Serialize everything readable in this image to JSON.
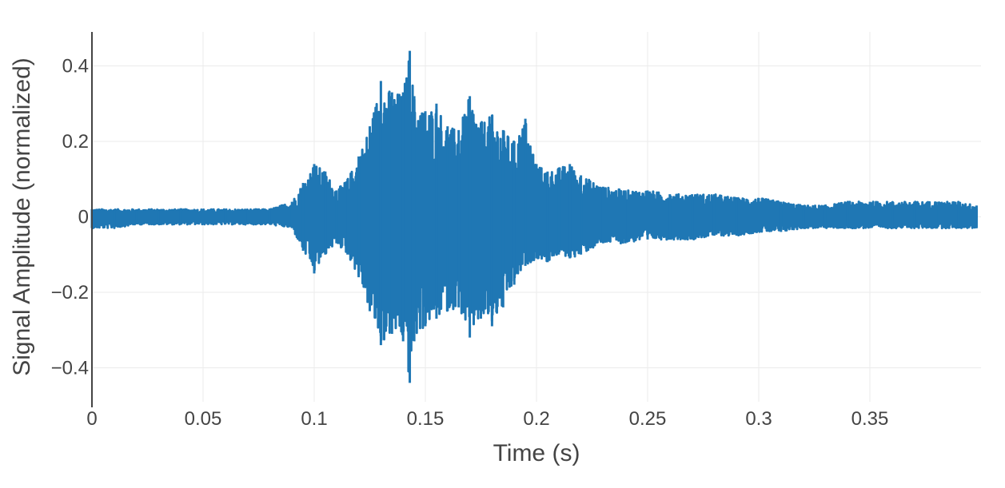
{
  "chart_data": {
    "type": "line",
    "title": "",
    "xlabel": "Time (s)",
    "ylabel": "Signal Amplitude (normalized)",
    "xlim": [
      0,
      0.4
    ],
    "ylim": [
      -0.49,
      0.49
    ],
    "x_ticks": [
      {
        "value": 0,
        "label": "0"
      },
      {
        "value": 0.05,
        "label": "0.05"
      },
      {
        "value": 0.1,
        "label": "0.1"
      },
      {
        "value": 0.15,
        "label": "0.15"
      },
      {
        "value": 0.2,
        "label": "0.2"
      },
      {
        "value": 0.25,
        "label": "0.25"
      },
      {
        "value": 0.3,
        "label": "0.3"
      },
      {
        "value": 0.35,
        "label": "0.35"
      }
    ],
    "y_ticks": [
      {
        "value": 0.4,
        "label": "0.4"
      },
      {
        "value": 0.2,
        "label": "0.2"
      },
      {
        "value": 0,
        "label": "0"
      },
      {
        "value": -0.2,
        "label": "−0.2"
      },
      {
        "value": -0.4,
        "label": "−0.4"
      }
    ],
    "grid": true,
    "series": [
      {
        "color": "#1f77b4",
        "x": [
          0,
          0.01,
          0.02,
          0.03,
          0.04,
          0.05,
          0.06,
          0.07,
          0.08,
          0.09,
          0.095,
          0.1,
          0.105,
          0.11,
          0.115,
          0.12,
          0.125,
          0.13,
          0.135,
          0.14,
          0.143,
          0.145,
          0.15,
          0.155,
          0.16,
          0.165,
          0.17,
          0.175,
          0.18,
          0.185,
          0.19,
          0.195,
          0.2,
          0.205,
          0.21,
          0.215,
          0.22,
          0.23,
          0.24,
          0.25,
          0.26,
          0.27,
          0.28,
          0.29,
          0.3,
          0.31,
          0.32,
          0.33,
          0.34,
          0.35,
          0.36,
          0.37,
          0.38,
          0.39,
          0.398
        ],
        "upper": [
          0.02,
          0.02,
          0.02,
          0.02,
          0.02,
          0.02,
          0.02,
          0.02,
          0.02,
          0.04,
          0.09,
          0.14,
          0.12,
          0.07,
          0.1,
          0.16,
          0.24,
          0.36,
          0.33,
          0.33,
          0.44,
          0.32,
          0.28,
          0.3,
          0.24,
          0.23,
          0.32,
          0.25,
          0.27,
          0.23,
          0.2,
          0.26,
          0.14,
          0.12,
          0.13,
          0.14,
          0.11,
          0.08,
          0.07,
          0.07,
          0.06,
          0.06,
          0.06,
          0.05,
          0.05,
          0.04,
          0.03,
          0.03,
          0.04,
          0.04,
          0.04,
          0.04,
          0.04,
          0.04,
          0.03
        ],
        "lower": [
          -0.03,
          -0.03,
          -0.02,
          -0.02,
          -0.02,
          -0.02,
          -0.02,
          -0.02,
          -0.02,
          -0.03,
          -0.09,
          -0.15,
          -0.1,
          -0.07,
          -0.1,
          -0.16,
          -0.25,
          -0.34,
          -0.31,
          -0.33,
          -0.44,
          -0.33,
          -0.29,
          -0.27,
          -0.25,
          -0.24,
          -0.32,
          -0.27,
          -0.29,
          -0.24,
          -0.18,
          -0.13,
          -0.11,
          -0.12,
          -0.1,
          -0.11,
          -0.1,
          -0.07,
          -0.07,
          -0.06,
          -0.06,
          -0.06,
          -0.05,
          -0.05,
          -0.04,
          -0.04,
          -0.03,
          -0.03,
          -0.03,
          -0.03,
          -0.03,
          -0.03,
          -0.03,
          -0.03,
          -0.03
        ]
      }
    ]
  }
}
